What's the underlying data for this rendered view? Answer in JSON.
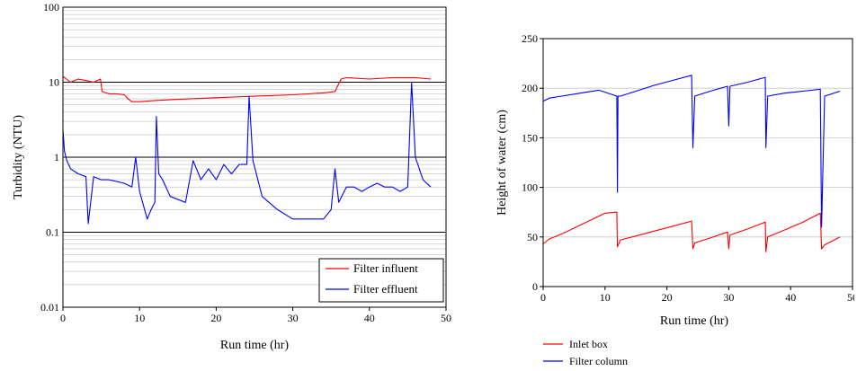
{
  "chart_data": [
    {
      "type": "line",
      "xlabel": "Run time (hr)",
      "ylabel": "Turbidity (NTU)",
      "xlim": [
        0,
        50
      ],
      "ylim": [
        0.01,
        100
      ],
      "yscale": "log",
      "grid": true,
      "legend_position": "bottom-right",
      "x_ticks": [
        "0",
        "10",
        "20",
        "30",
        "40",
        "50"
      ],
      "y_ticks": [
        "100",
        "10",
        "1",
        "0.1",
        "0.01"
      ],
      "series": [
        {
          "name": "Filter influent",
          "color": "#ff0000",
          "x": [
            0,
            1,
            2,
            3,
            4,
            4.9,
            5.1,
            6,
            7,
            8,
            8.5,
            9,
            10,
            12,
            15,
            20,
            25,
            30,
            34,
            35.5,
            36.3,
            37,
            40,
            43,
            46,
            48
          ],
          "y": [
            12,
            10,
            11,
            10.5,
            10,
            11,
            7.5,
            7,
            7,
            6.8,
            6,
            5.5,
            5.5,
            5.7,
            5.9,
            6.2,
            6.5,
            6.8,
            7.2,
            7.5,
            11,
            11.5,
            11,
            11.5,
            11.5,
            11
          ]
        },
        {
          "name": "Filter effluent",
          "color": "#0000ff",
          "x": [
            0,
            0.2,
            0.5,
            1,
            2,
            3,
            3.3,
            4,
            5,
            6,
            8,
            9,
            9.5,
            10,
            11,
            11.5,
            12,
            12.2,
            12.5,
            13,
            14,
            16,
            17,
            18,
            19,
            20,
            21,
            22,
            23,
            24,
            24.3,
            24.8,
            26,
            28,
            30,
            32,
            34,
            35,
            35.5,
            36,
            37,
            38,
            39,
            40,
            41,
            42,
            43,
            44,
            45,
            45.5,
            46,
            47,
            48
          ],
          "y": [
            2.3,
            1.2,
            0.9,
            0.7,
            0.6,
            0.55,
            0.13,
            0.55,
            0.5,
            0.5,
            0.45,
            0.4,
            1.0,
            0.35,
            0.15,
            0.2,
            0.25,
            3.5,
            0.6,
            0.5,
            0.3,
            0.25,
            0.9,
            0.5,
            0.7,
            0.5,
            0.8,
            0.6,
            0.8,
            0.8,
            6.5,
            0.9,
            0.3,
            0.2,
            0.15,
            0.15,
            0.15,
            0.2,
            0.7,
            0.25,
            0.4,
            0.4,
            0.35,
            0.4,
            0.45,
            0.4,
            0.4,
            0.35,
            0.4,
            10,
            1.0,
            0.5,
            0.4
          ]
        }
      ]
    },
    {
      "type": "line",
      "xlabel": "Run time (hr)",
      "ylabel": "Height of water (cm)",
      "xlim": [
        0,
        50
      ],
      "ylim": [
        0,
        250
      ],
      "grid": true,
      "legend_position": "below-left",
      "x_ticks": [
        "0",
        "10",
        "20",
        "30",
        "40",
        "50"
      ],
      "y_ticks": [
        "250",
        "200",
        "150",
        "100",
        "50",
        "0"
      ],
      "series": [
        {
          "name": "Inlet box",
          "color": "#ff0000",
          "x": [
            0,
            1,
            3,
            5,
            7,
            9,
            10,
            11.9,
            12,
            12.5,
            15,
            18,
            21,
            24,
            24.2,
            24.5,
            27,
            29.8,
            30,
            30.2,
            33,
            35.9,
            36,
            36.3,
            39,
            42,
            44.8,
            45,
            45.5,
            48
          ],
          "y": [
            43,
            48,
            53,
            59,
            65,
            71,
            74,
            75,
            40,
            47,
            51,
            56,
            61,
            66,
            38,
            44,
            49,
            55,
            38,
            52,
            58,
            65,
            35,
            50,
            57,
            65,
            74,
            38,
            42,
            50
          ]
        },
        {
          "name": "Filter column",
          "color": "#0000ff",
          "x": [
            0,
            1,
            3,
            5,
            7,
            9,
            10,
            11.9,
            12,
            12.1,
            12.5,
            15,
            18,
            21,
            24,
            24.2,
            24.5,
            27,
            29.8,
            30,
            30.2,
            33,
            35.9,
            36,
            36.3,
            39,
            42,
            44.8,
            45,
            45.5,
            48
          ],
          "y": [
            187,
            190,
            192,
            194,
            196,
            198,
            196,
            192,
            95,
            192,
            192,
            197,
            203,
            208,
            213,
            140,
            192,
            197,
            202,
            162,
            202,
            206,
            211,
            140,
            192,
            195,
            197,
            199,
            60,
            192,
            197
          ]
        }
      ]
    }
  ]
}
